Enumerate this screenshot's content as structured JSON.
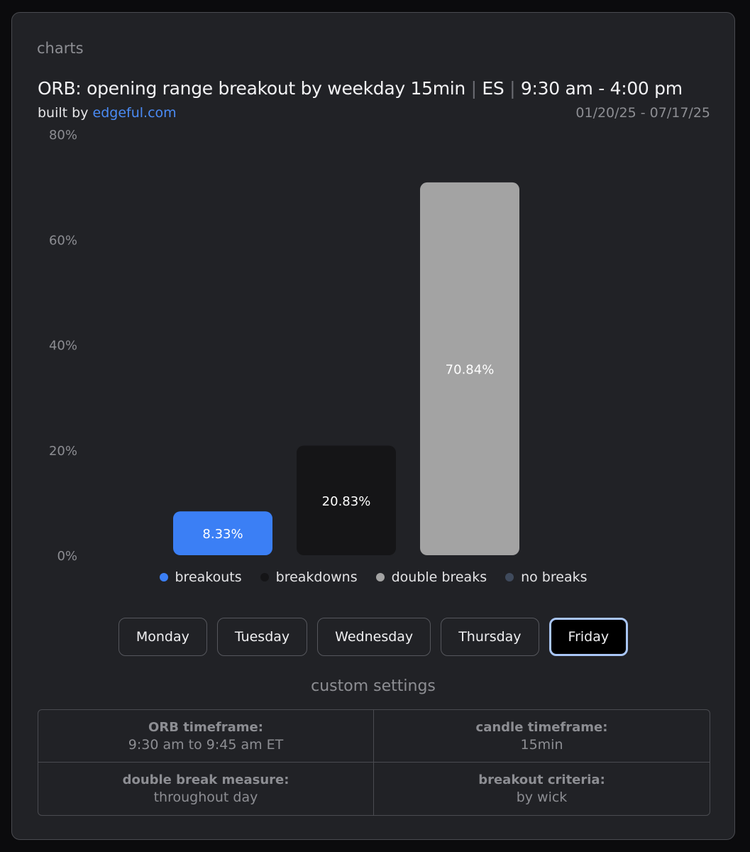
{
  "section_label": "charts",
  "header": {
    "title_main": "ORB: opening range breakout by weekday 15min",
    "separator": "|",
    "instrument": "ES",
    "session": "9:30 am - 4:00 pm",
    "built_by_prefix": "built by",
    "built_by_link": "edgeful.com",
    "date_range": "01/20/25 - 07/17/25"
  },
  "chart_data": {
    "type": "bar",
    "categories": [
      "breakouts",
      "breakdowns",
      "double breaks"
    ],
    "values": [
      8.33,
      20.83,
      70.84
    ],
    "value_labels": [
      "8.33%",
      "20.83%",
      "70.84%"
    ],
    "colors": [
      "#3b7ff5",
      "#151517",
      "#a3a3a3"
    ],
    "ylim": [
      0,
      80
    ],
    "yticks": [
      0,
      20,
      40,
      60,
      80
    ],
    "ytick_labels": [
      "0%",
      "20%",
      "40%",
      "60%",
      "80%"
    ],
    "grid": false,
    "legend_position": "bottom",
    "legend": [
      {
        "label": "breakouts",
        "color": "#3b7ff5"
      },
      {
        "label": "breakdowns",
        "color": "#151517"
      },
      {
        "label": "double breaks",
        "color": "#a3a3a3"
      },
      {
        "label": "no breaks",
        "color": "#3f4a5c"
      }
    ]
  },
  "day_tabs": {
    "items": [
      "Monday",
      "Tuesday",
      "Wednesday",
      "Thursday",
      "Friday"
    ],
    "selected": "Friday"
  },
  "settings": {
    "title": "custom settings",
    "items": [
      {
        "label": "ORB timeframe:",
        "value": "9:30 am to 9:45 am ET"
      },
      {
        "label": "candle timeframe:",
        "value": "15min"
      },
      {
        "label": "double break measure:",
        "value": "throughout day"
      },
      {
        "label": "breakout criteria:",
        "value": "by wick"
      }
    ]
  }
}
